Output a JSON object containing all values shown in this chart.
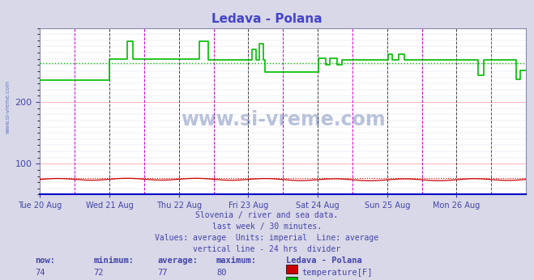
{
  "title": "Ledava - Polana",
  "title_color": "#4444cc",
  "bg_color": "#d8d8e8",
  "plot_bg_color": "#ffffff",
  "grid_color": "#ffaaaa",
  "grid_minor_color": "#ddddee",
  "xlabel_color": "#4444aa",
  "ylabel_color": "#4444aa",
  "x_tick_labels": [
    "Tue 20 Aug",
    "Wed 21 Aug",
    "Thu 22 Aug",
    "Fri 23 Aug",
    "Sat 24 Aug",
    "Sun 25 Aug",
    "Mon 26 Aug"
  ],
  "ylim": [
    50,
    320
  ],
  "yticks": [
    100,
    200
  ],
  "temp_avg": 77,
  "temp_min": 72,
  "temp_max": 80,
  "temp_now": 74,
  "flow_avg": 263,
  "flow_min": 229,
  "flow_max": 299,
  "flow_now": 252,
  "temp_color": "#cc0000",
  "flow_color": "#00bb00",
  "vline_color": "#cc00cc",
  "vline_day_color": "#444444",
  "subtitle_color": "#4444aa",
  "watermark": "www.si-vreme.com",
  "n_points": 336,
  "days": 7,
  "subtitle_lines": [
    "Slovenia / river and sea data.",
    "last week / 30 minutes.",
    "Values: average  Units: imperial  Line: average",
    "vertical line - 24 hrs  divider"
  ]
}
